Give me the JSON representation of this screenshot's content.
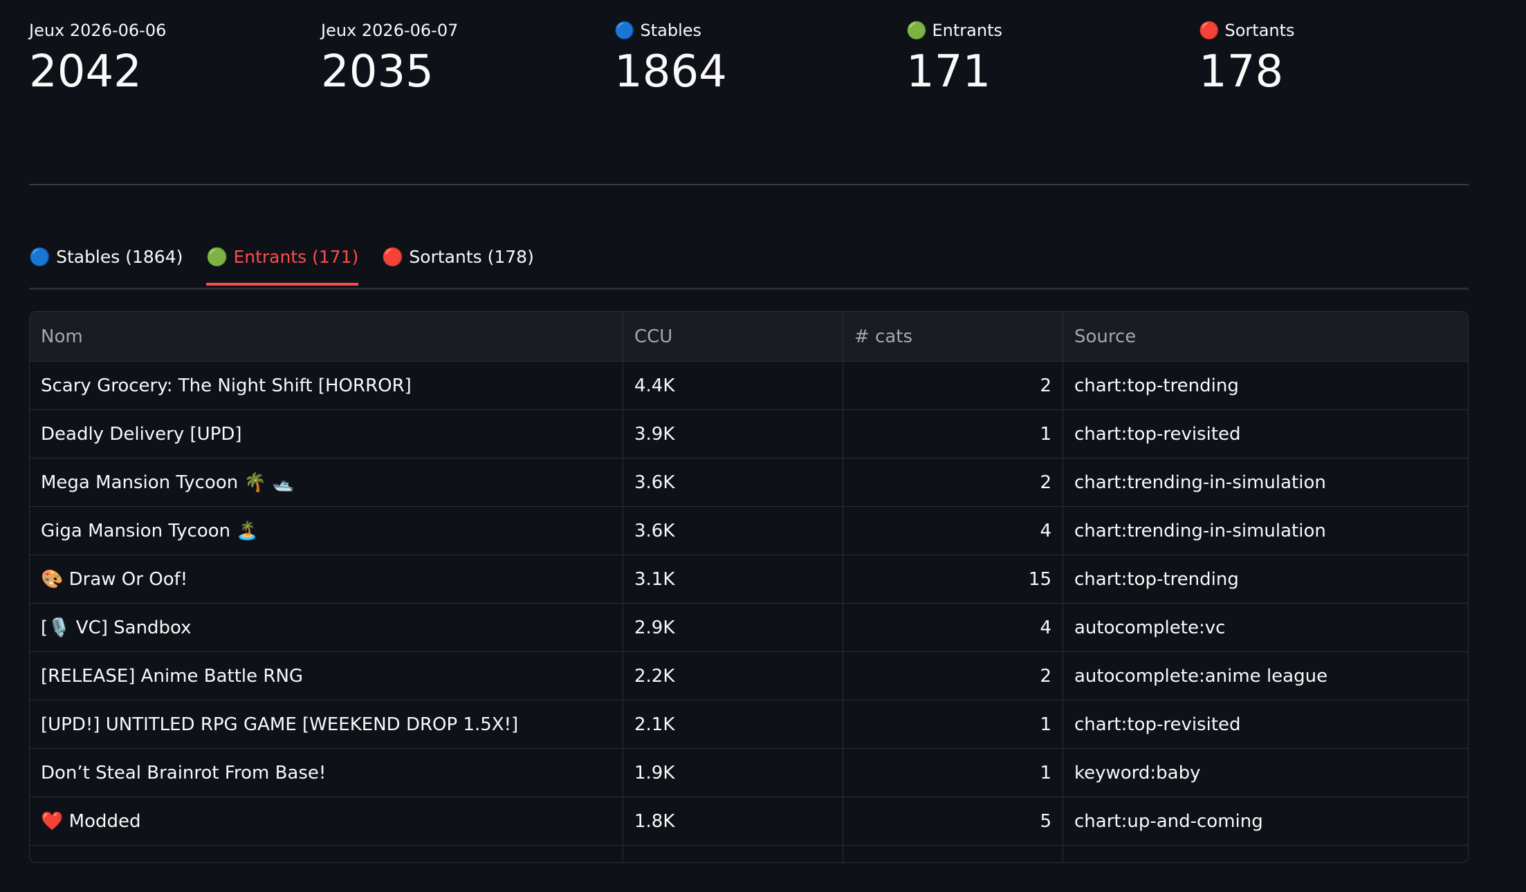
{
  "metrics": [
    {
      "label": "Jeux 2026-06-06",
      "value": "2042"
    },
    {
      "label": "Jeux 2026-06-07",
      "value": "2035"
    },
    {
      "label": "🔵 Stables",
      "value": "1864"
    },
    {
      "label": "🟢 Entrants",
      "value": "171"
    },
    {
      "label": "🔴 Sortants",
      "value": "178"
    }
  ],
  "tabs": [
    "🔵 Stables (1864)",
    "🟢 Entrants (171)",
    "🔴 Sortants (178)"
  ],
  "table": {
    "columns": [
      "Nom",
      "CCU",
      "# cats",
      "Source"
    ],
    "rows": [
      [
        "Scary Grocery: The Night Shift [HORROR]",
        "4.4K",
        "2",
        "chart:top-trending"
      ],
      [
        "Deadly Delivery [UPD]",
        "3.9K",
        "1",
        "chart:top-revisited"
      ],
      [
        "Mega Mansion Tycoon 🌴 🛥️",
        "3.6K",
        "2",
        "chart:trending-in-simulation"
      ],
      [
        "Giga Mansion Tycoon 🏝️",
        "3.6K",
        "4",
        "chart:trending-in-simulation"
      ],
      [
        "🎨 Draw Or Oof!",
        "3.1K",
        "15",
        "chart:top-trending"
      ],
      [
        "[🎙️ VC] Sandbox",
        "2.9K",
        "4",
        "autocomplete:vc"
      ],
      [
        "[RELEASE] Anime Battle RNG",
        "2.2K",
        "2",
        "autocomplete:anime league"
      ],
      [
        "[UPD!] UNTITLED RPG GAME [WEEKEND DROP 1.5X!]",
        "2.1K",
        "1",
        "chart:top-revisited"
      ],
      [
        "Don’t Steal Brainrot From Base!",
        "1.9K",
        "1",
        "keyword:baby"
      ],
      [
        "❤️ Modded",
        "1.8K",
        "5",
        "chart:up-and-coming"
      ]
    ]
  }
}
